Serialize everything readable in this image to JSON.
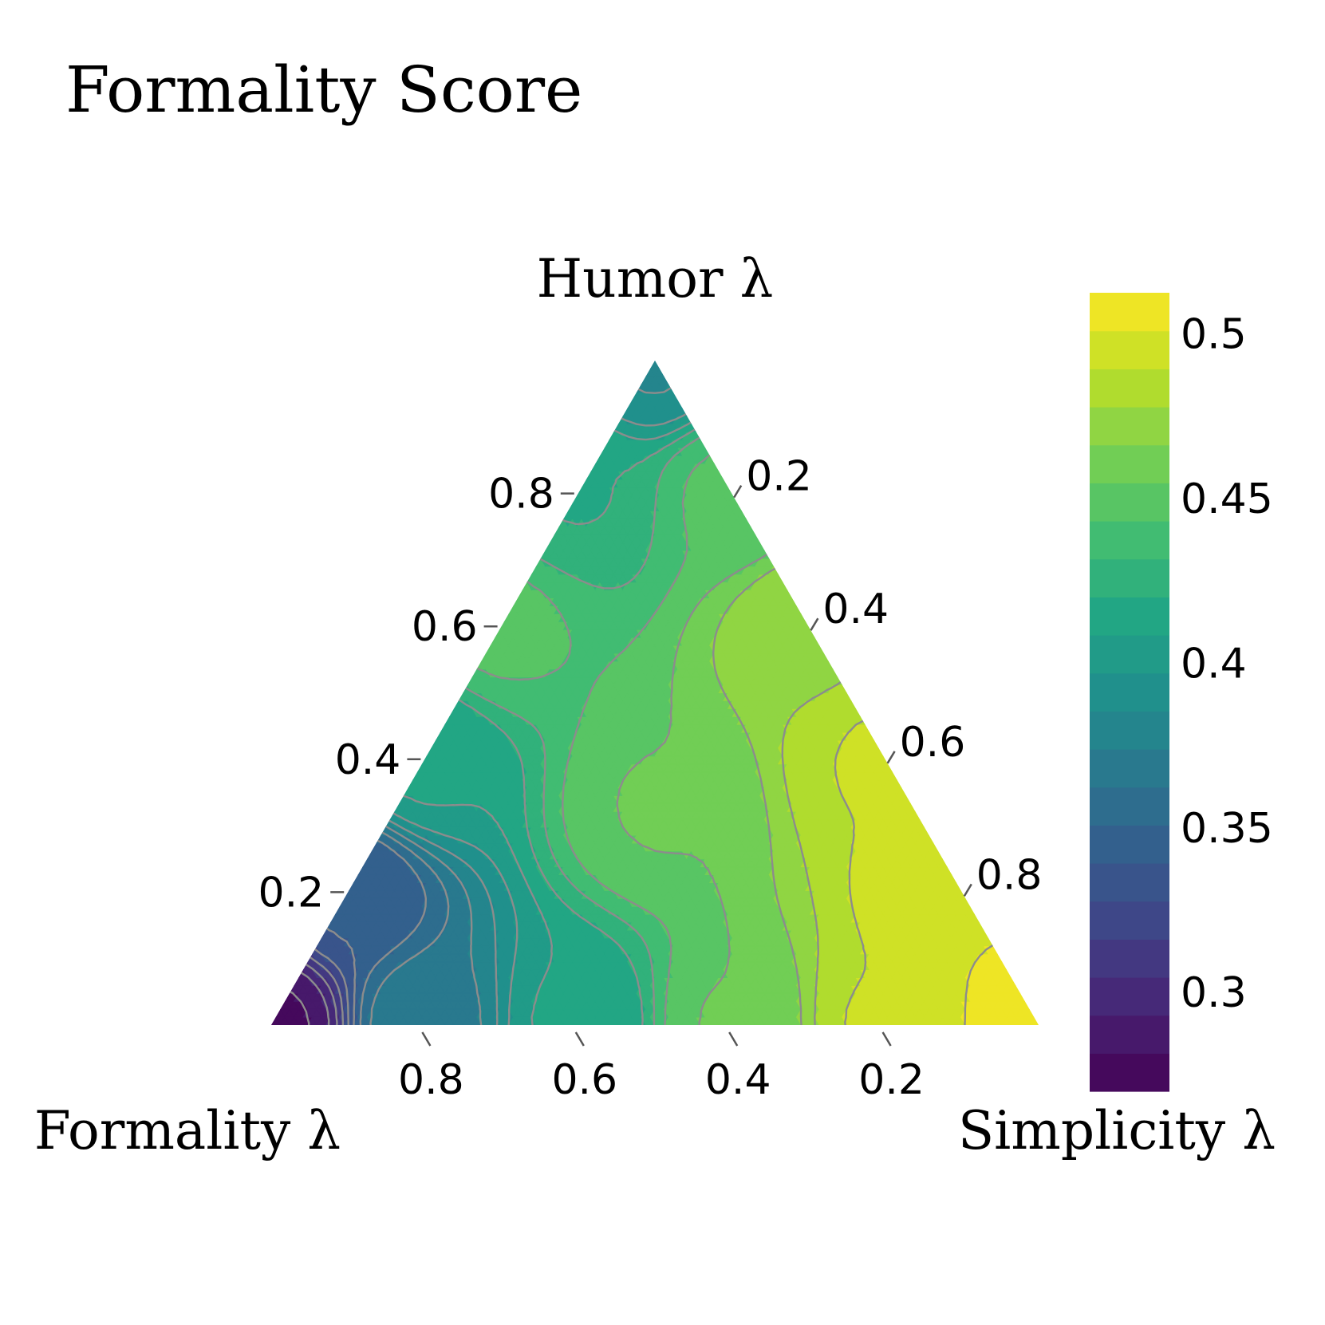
{
  "chart_data": {
    "type": "heatmap",
    "subtype": "ternary-filled-contour",
    "title": "Formality Score",
    "axes": {
      "top": {
        "label": "Humor λ",
        "ticks": [
          "0.8",
          "0.6",
          "0.4",
          "0.2"
        ],
        "tick_values": [
          0.8,
          0.6,
          0.4,
          0.2
        ]
      },
      "right": {
        "label": "Simplicity λ",
        "ticks": [
          "0.2",
          "0.4",
          "0.6",
          "0.8"
        ],
        "tick_values": [
          0.2,
          0.4,
          0.6,
          0.8
        ]
      },
      "left": {
        "label": "Formality λ",
        "ticks": [
          "0.8",
          "0.6",
          "0.4",
          "0.2"
        ],
        "tick_values": [
          0.8,
          0.6,
          0.4,
          0.2
        ]
      }
    },
    "colorbar": {
      "ticks": [
        "0.5",
        "0.45",
        "0.4",
        "0.35",
        "0.3"
      ],
      "tick_values": [
        0.5,
        0.45,
        0.4,
        0.35,
        0.3
      ],
      "range": [
        0.27,
        0.5125
      ],
      "colormap": "viridis"
    },
    "samples": [
      {
        "formality": 1.0,
        "humor": 0.0,
        "simplicity": 0.0,
        "score": 0.28
      },
      {
        "formality": 0.8,
        "humor": 0.0,
        "simplicity": 0.2,
        "score": 0.37
      },
      {
        "formality": 0.6,
        "humor": 0.0,
        "simplicity": 0.4,
        "score": 0.41
      },
      {
        "formality": 0.4,
        "humor": 0.0,
        "simplicity": 0.6,
        "score": 0.455
      },
      {
        "formality": 0.2,
        "humor": 0.0,
        "simplicity": 0.8,
        "score": 0.49
      },
      {
        "formality": 0.0,
        "humor": 0.0,
        "simplicity": 1.0,
        "score": 0.51
      },
      {
        "formality": 0.0,
        "humor": 0.2,
        "simplicity": 0.8,
        "score": 0.5
      },
      {
        "formality": 0.0,
        "humor": 0.4,
        "simplicity": 0.6,
        "score": 0.49
      },
      {
        "formality": 0.0,
        "humor": 0.6,
        "simplicity": 0.4,
        "score": 0.475
      },
      {
        "formality": 0.0,
        "humor": 0.8,
        "simplicity": 0.2,
        "score": 0.445
      },
      {
        "formality": 0.0,
        "humor": 1.0,
        "simplicity": 0.0,
        "score": 0.385
      },
      {
        "formality": 0.2,
        "humor": 0.8,
        "simplicity": 0.0,
        "score": 0.42
      },
      {
        "formality": 0.4,
        "humor": 0.6,
        "simplicity": 0.0,
        "score": 0.445
      },
      {
        "formality": 0.6,
        "humor": 0.4,
        "simplicity": 0.0,
        "score": 0.41
      },
      {
        "formality": 0.8,
        "humor": 0.2,
        "simplicity": 0.0,
        "score": 0.34
      },
      {
        "formality": 0.33,
        "humor": 0.33,
        "simplicity": 0.34,
        "score": 0.455
      }
    ]
  }
}
